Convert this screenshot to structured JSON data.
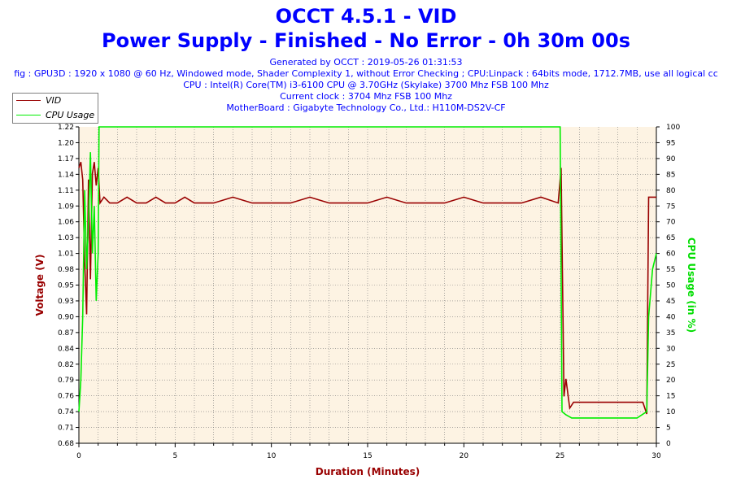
{
  "header": {
    "title": "OCCT 4.5.1 - VID",
    "subtitle": "Power Supply - Finished - No Error - 0h 30m 00s",
    "generated": "Generated by OCCT : 2019-05-26 01:31:53",
    "config": "fig : GPU3D : 1920 x 1080 @ 60 Hz, Windowed mode, Shader Complexity 1, without Error Checking ; CPU:Linpack : 64bits mode, 1712.7MB, use all logical cc",
    "cpu": "CPU : Intel(R) Core(TM) i3-6100 CPU @ 3.70GHz (Skylake) 3700 Mhz FSB 100 Mhz",
    "clock": "Current clock : 3704 Mhz FSB 100 Mhz",
    "motherboard": "MotherBoard : Gigabyte Technology Co., Ltd.: H110M-DS2V-CF"
  },
  "colors": {
    "vid": "#990000",
    "cpu": "#00ee00",
    "plot_bg": "#fdf3e3",
    "title": "#0000ff",
    "axis_title_left": "#990000",
    "axis_title_right": "#00dd00",
    "axis_title_x": "#990000"
  },
  "chart_data": {
    "type": "line",
    "xlabel": "Duration (Minutes)",
    "ylabel": "Voltage (V)",
    "y2label": "CPU Usage (in %)",
    "xlim": [
      0,
      30
    ],
    "ylim": [
      0.68,
      1.22
    ],
    "y2lim": [
      0,
      100
    ],
    "grid": true,
    "legend_position": "top-left",
    "x_ticks": [
      "0",
      "5",
      "10",
      "15",
      "20",
      "25",
      "30"
    ],
    "y_ticks": [
      "0.68",
      "0.71",
      "0.74",
      "0.76",
      "0.79",
      "0.82",
      "0.84",
      "0.87",
      "0.90",
      "0.93",
      "0.95",
      "0.98",
      "1.01",
      "1.03",
      "1.06",
      "1.09",
      "1.11",
      "1.14",
      "1.17",
      "1.20",
      "1.22"
    ],
    "y2_ticks": [
      "0",
      "5",
      "10",
      "15",
      "20",
      "25",
      "30",
      "35",
      "40",
      "45",
      "50",
      "55",
      "60",
      "65",
      "70",
      "75",
      "80",
      "85",
      "90",
      "95",
      "100"
    ],
    "series": [
      {
        "name": "VID",
        "axis": "left",
        "x": [
          0,
          0.1,
          0.2,
          0.3,
          0.4,
          0.5,
          0.6,
          0.7,
          0.8,
          0.9,
          1.0,
          1.1,
          1.3,
          1.6,
          2.0,
          2.5,
          3.0,
          3.5,
          4.0,
          4.5,
          5.0,
          5.5,
          6.0,
          7.0,
          8.0,
          9.0,
          10.0,
          11.0,
          12.0,
          13.0,
          14.0,
          15.0,
          16.0,
          17.0,
          18.0,
          19.0,
          20.0,
          21.0,
          22.0,
          23.0,
          24.0,
          24.9,
          25.05,
          25.2,
          25.3,
          25.5,
          25.7,
          26.0,
          26.5,
          27.0,
          27.5,
          28.0,
          28.5,
          29.0,
          29.3,
          29.5,
          29.6,
          29.8,
          30.0
        ],
        "y": [
          1.15,
          1.16,
          1.13,
          0.99,
          0.9,
          1.13,
          0.96,
          1.14,
          1.16,
          1.12,
          1.15,
          1.09,
          1.1,
          1.09,
          1.09,
          1.1,
          1.09,
          1.09,
          1.1,
          1.09,
          1.09,
          1.1,
          1.09,
          1.09,
          1.1,
          1.09,
          1.09,
          1.09,
          1.1,
          1.09,
          1.09,
          1.09,
          1.1,
          1.09,
          1.09,
          1.09,
          1.1,
          1.09,
          1.09,
          1.09,
          1.1,
          1.09,
          1.15,
          0.76,
          0.79,
          0.74,
          0.75,
          0.75,
          0.75,
          0.75,
          0.75,
          0.75,
          0.75,
          0.75,
          0.75,
          0.73,
          1.1,
          1.1,
          1.1
        ]
      },
      {
        "name": "CPU Usage",
        "axis": "right",
        "x": [
          0,
          0.1,
          0.2,
          0.3,
          0.4,
          0.5,
          0.6,
          0.7,
          0.8,
          0.9,
          1.0,
          1.05,
          1.2,
          5,
          10,
          15,
          20,
          24.9,
          25.0,
          25.1,
          25.3,
          25.6,
          26.0,
          27.0,
          28.0,
          29.0,
          29.5,
          29.6,
          29.8,
          30.0
        ],
        "y": [
          10,
          20,
          40,
          80,
          55,
          70,
          92,
          60,
          75,
          45,
          60,
          100,
          100,
          100,
          100,
          100,
          100,
          100,
          100,
          10,
          9,
          8,
          8,
          8,
          8,
          8,
          10,
          40,
          55,
          60
        ]
      }
    ]
  }
}
